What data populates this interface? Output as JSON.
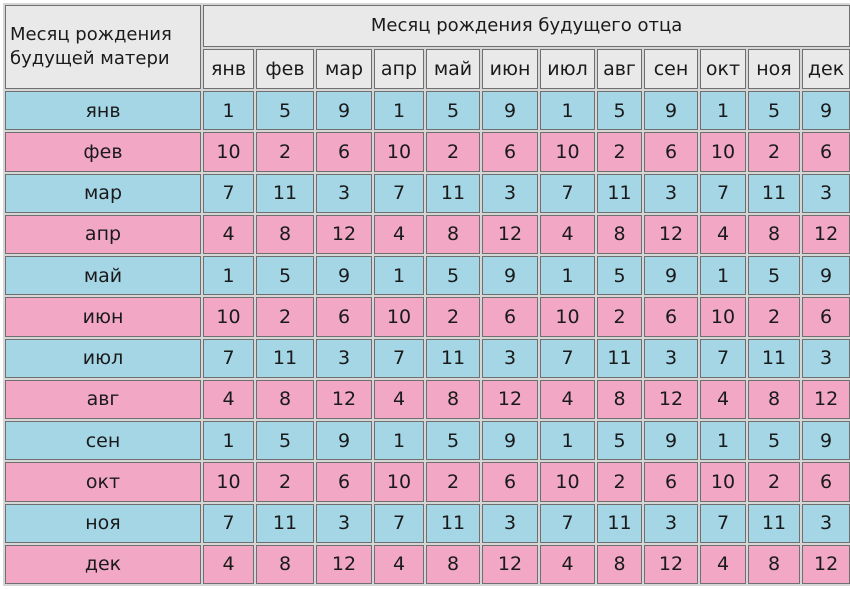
{
  "table": {
    "mother_header": "Месяц рождения будущей матери",
    "father_header": "Месяц рождения будущего отца",
    "father_months": [
      "янв",
      "фев",
      "мар",
      "апр",
      "май",
      "июн",
      "июл",
      "авг",
      "сен",
      "окт",
      "ноя",
      "дек"
    ],
    "rows": [
      {
        "month": "янв",
        "values": [
          "1",
          "5",
          "9",
          "1",
          "5",
          "9",
          "1",
          "5",
          "9",
          "1",
          "5",
          "9"
        ],
        "color": "blue"
      },
      {
        "month": "фев",
        "values": [
          "10",
          "2",
          "6",
          "10",
          "2",
          "6",
          "10",
          "2",
          "6",
          "10",
          "2",
          "6"
        ],
        "color": "pink"
      },
      {
        "month": "мар",
        "values": [
          "7",
          "11",
          "3",
          "7",
          "11",
          "3",
          "7",
          "11",
          "3",
          "7",
          "11",
          "3"
        ],
        "color": "blue"
      },
      {
        "month": "апр",
        "values": [
          "4",
          "8",
          "12",
          "4",
          "8",
          "12",
          "4",
          "8",
          "12",
          "4",
          "8",
          "12"
        ],
        "color": "pink"
      },
      {
        "month": "май",
        "values": [
          "1",
          "5",
          "9",
          "1",
          "5",
          "9",
          "1",
          "5",
          "9",
          "1",
          "5",
          "9"
        ],
        "color": "blue"
      },
      {
        "month": "июн",
        "values": [
          "10",
          "2",
          "6",
          "10",
          "2",
          "6",
          "10",
          "2",
          "6",
          "10",
          "2",
          "6"
        ],
        "color": "pink"
      },
      {
        "month": "июл",
        "values": [
          "7",
          "11",
          "3",
          "7",
          "11",
          "3",
          "7",
          "11",
          "3",
          "7",
          "11",
          "3"
        ],
        "color": "blue"
      },
      {
        "month": "авг",
        "values": [
          "4",
          "8",
          "12",
          "4",
          "8",
          "12",
          "4",
          "8",
          "12",
          "4",
          "8",
          "12"
        ],
        "color": "pink"
      },
      {
        "month": "сен",
        "values": [
          "1",
          "5",
          "9",
          "1",
          "5",
          "9",
          "1",
          "5",
          "9",
          "1",
          "5",
          "9"
        ],
        "color": "blue"
      },
      {
        "month": "окт",
        "values": [
          "10",
          "2",
          "6",
          "10",
          "2",
          "6",
          "10",
          "2",
          "6",
          "10",
          "2",
          "6"
        ],
        "color": "pink"
      },
      {
        "month": "ноя",
        "values": [
          "7",
          "11",
          "3",
          "7",
          "11",
          "3",
          "7",
          "11",
          "3",
          "7",
          "11",
          "3"
        ],
        "color": "blue"
      },
      {
        "month": "дек",
        "values": [
          "4",
          "8",
          "12",
          "4",
          "8",
          "12",
          "4",
          "8",
          "12",
          "4",
          "8",
          "12"
        ],
        "color": "pink"
      }
    ]
  },
  "colors": {
    "row_blue": "#a4d6e6",
    "row_pink": "#f2a8c4",
    "header_bg": "#e9e9e9",
    "border": "#6f6f6f"
  }
}
